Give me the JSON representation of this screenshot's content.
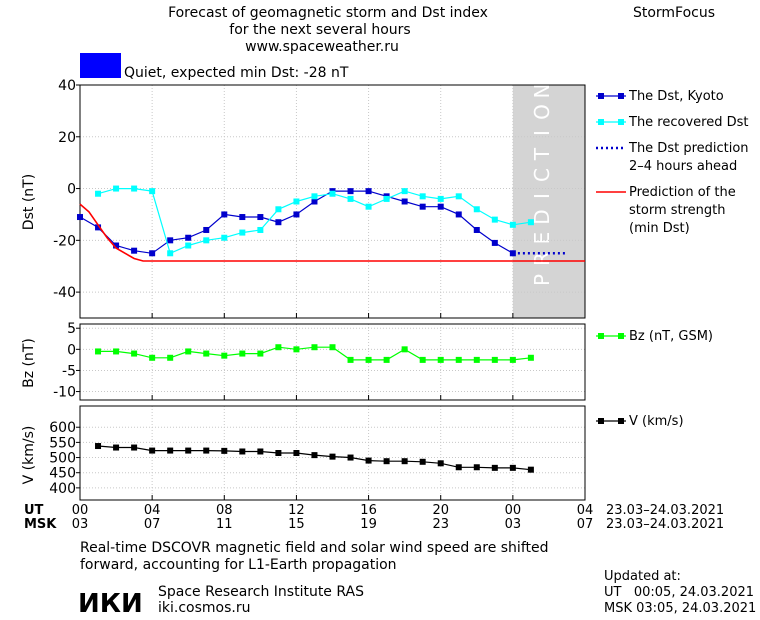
{
  "header": {
    "title_lines": [
      "Forecast of geomagnetic storm and Dst index",
      "for the next several hours",
      "www.spaceweather.ru"
    ],
    "brand": "StormFocus",
    "status_text": "Quiet, expected min Dst: -28 nT",
    "status_color": "#0000ff"
  },
  "chart_data": [
    {
      "type": "line",
      "ylabel": "Dst (nT)",
      "ylim": [
        -50,
        40
      ],
      "yticks": [
        40,
        20,
        0,
        -20,
        -40
      ],
      "xlim": [
        0,
        28
      ],
      "prediction_band": {
        "x_start": 24,
        "x_end": 28,
        "label": "PREDICTION"
      },
      "series": [
        {
          "name": "The Dst, Kyoto",
          "color": "#0000cc",
          "x": [
            0,
            1,
            2,
            3,
            4,
            5,
            6,
            7,
            8,
            9,
            10,
            11,
            12,
            13,
            14,
            15,
            16,
            17,
            18,
            19,
            20,
            21,
            22,
            23,
            24
          ],
          "values": [
            -11,
            -15,
            -22,
            -24,
            -25,
            -20,
            -19,
            -16,
            -10,
            -11,
            -11,
            -13,
            -10,
            -5,
            -1,
            -1,
            -1,
            -3,
            -5,
            -7,
            -7,
            -10,
            -16,
            -21,
            -25
          ]
        },
        {
          "name": "The recovered Dst",
          "color": "#00ffff",
          "x": [
            1,
            2,
            3,
            4,
            5,
            6,
            7,
            8,
            9,
            10,
            11,
            12,
            13,
            14,
            15,
            16,
            17,
            18,
            19,
            20,
            21,
            22,
            23,
            24,
            25
          ],
          "values": [
            -2,
            0,
            0,
            -1,
            -25,
            -22,
            -20,
            -19,
            -17,
            -16,
            -8,
            -5,
            -3,
            -2,
            -4,
            -7,
            -4,
            -1,
            -3,
            -4,
            -3,
            -8,
            -12,
            -14,
            -13
          ]
        },
        {
          "name": "The Dst prediction 2–4 hours ahead",
          "color": "#0000cc",
          "dotted": true,
          "x": [
            24,
            25,
            26,
            27
          ],
          "values": [
            -25,
            -25,
            -25,
            -25
          ]
        },
        {
          "name": "Prediction of the storm strength (min Dst)",
          "color": "#ff0000",
          "x": [
            0,
            0.5,
            1,
            1.5,
            2,
            2.5,
            3,
            3.5,
            4,
            28
          ],
          "values": [
            -6,
            -9,
            -14,
            -19,
            -23,
            -25,
            -27,
            -28,
            -28,
            -28
          ]
        }
      ]
    },
    {
      "type": "line",
      "ylabel": "Bz (nT)",
      "ylim": [
        -12,
        6
      ],
      "yticks": [
        5,
        0,
        -5,
        -10
      ],
      "series": [
        {
          "name": "Bz (nT, GSM)",
          "color": "#00ff00",
          "x": [
            1,
            2,
            3,
            4,
            5,
            6,
            7,
            8,
            9,
            10,
            11,
            12,
            13,
            14,
            15,
            16,
            17,
            18,
            19,
            20,
            21,
            22,
            23,
            24,
            25
          ],
          "values": [
            -0.5,
            -0.5,
            -1,
            -2,
            -2,
            -0.5,
            -1,
            -1.5,
            -1,
            -1,
            0.5,
            0,
            0.5,
            0.5,
            -2.5,
            -2.5,
            -2.5,
            0,
            -2.5,
            -2.5,
            -2.5,
            -2.5,
            -2.5,
            -2.5,
            -2
          ]
        }
      ]
    },
    {
      "type": "line",
      "ylabel": "V (km/s)",
      "ylim": [
        360,
        670
      ],
      "yticks": [
        600,
        550,
        500,
        450,
        400
      ],
      "series": [
        {
          "name": "V (km/s)",
          "color": "#000000",
          "x": [
            1,
            2,
            3,
            4,
            5,
            6,
            7,
            8,
            9,
            10,
            11,
            12,
            13,
            14,
            15,
            16,
            17,
            18,
            19,
            20,
            21,
            22,
            23,
            24,
            25
          ],
          "values": [
            538,
            533,
            533,
            523,
            523,
            523,
            523,
            522,
            520,
            520,
            515,
            515,
            508,
            503,
            500,
            490,
            488,
            488,
            486,
            481,
            468,
            468,
            466,
            466,
            460
          ]
        }
      ]
    }
  ],
  "time_axis": {
    "ut_label": "UT",
    "msk_label": "MSK",
    "ut_ticks": [
      "00",
      "04",
      "08",
      "12",
      "16",
      "20",
      "00",
      "04"
    ],
    "msk_ticks": [
      "03",
      "07",
      "11",
      "15",
      "19",
      "23",
      "03",
      "07"
    ],
    "ut_date": "23.03–24.03.2021",
    "msk_date": "23.03–24.03.2021"
  },
  "footer": {
    "note_lines": [
      "Real-time DSCOVR magnetic field and solar wind speed are shifted",
      "forward, accounting for L1-Earth propagation"
    ],
    "logo_text": "ИКИ",
    "institute": "Space Research Institute RAS",
    "website": "iki.cosmos.ru",
    "updated_label": "Updated at:",
    "updated_ut": "UT   00:05, 24.03.2021",
    "updated_msk": "MSK 03:05, 24.03.2021"
  }
}
